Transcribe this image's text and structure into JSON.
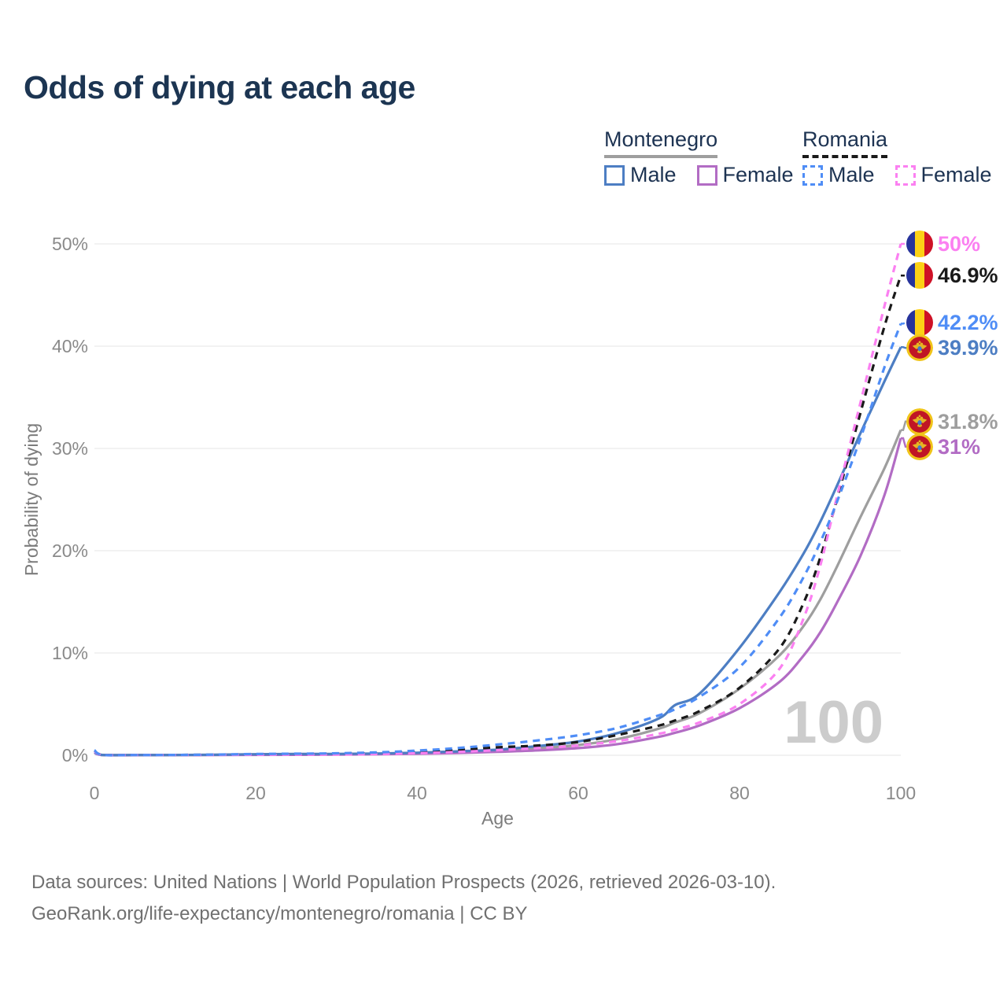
{
  "title": "Odds of dying at each age",
  "legend": {
    "groups": [
      {
        "name": "Montenegro",
        "underline_style": "solid",
        "underline_color": "#9e9e9e",
        "items": [
          {
            "label": "Male",
            "color": "#4d7ec3",
            "dashed": false
          },
          {
            "label": "Female",
            "color": "#b26cc4",
            "dashed": false
          }
        ]
      },
      {
        "name": "Romania",
        "underline_style": "dashed",
        "underline_color": "#1a1a1a",
        "items": [
          {
            "label": "Male",
            "color": "#4f8df6",
            "dashed": true
          },
          {
            "label": "Female",
            "color": "#fb80f1",
            "dashed": true
          }
        ]
      }
    ]
  },
  "chart_data": {
    "type": "line",
    "title": "Odds of dying at each age",
    "xlabel": "Age",
    "ylabel": "Probability of dying",
    "xlim": [
      0,
      100
    ],
    "ylim": [
      0,
      50
    ],
    "grid": "horizontal",
    "legend_position": "top-right",
    "x_ticks": [
      {
        "v": 0,
        "label": "0"
      },
      {
        "v": 20,
        "label": "20"
      },
      {
        "v": 40,
        "label": "40"
      },
      {
        "v": 60,
        "label": "60"
      },
      {
        "v": 80,
        "label": "80"
      },
      {
        "v": 100,
        "label": "100"
      }
    ],
    "y_ticks": [
      {
        "v": 0,
        "label": "0%"
      },
      {
        "v": 10,
        "label": "10%"
      },
      {
        "v": 20,
        "label": "20%"
      },
      {
        "v": 30,
        "label": "30%"
      },
      {
        "v": 40,
        "label": "40%"
      },
      {
        "v": 50,
        "label": "50%"
      }
    ],
    "x": [
      0,
      1,
      5,
      10,
      15,
      20,
      25,
      30,
      35,
      40,
      45,
      50,
      55,
      60,
      65,
      70,
      72,
      75,
      80,
      85,
      88,
      90,
      92,
      95,
      98,
      100
    ],
    "series": [
      {
        "id": "mne-total",
        "name": "Montenegro",
        "country": "Montenegro",
        "sex": "both",
        "color": "#9e9e9e",
        "dashed": false,
        "flag": "montenegro",
        "end_label": "31.8%",
        "end_value": 31.8,
        "values": [
          0.28,
          0.03,
          0.02,
          0.02,
          0.04,
          0.07,
          0.09,
          0.1,
          0.13,
          0.2,
          0.3,
          0.44,
          0.7,
          1.0,
          1.6,
          2.6,
          3.2,
          4.1,
          6.5,
          9.8,
          12.7,
          15.2,
          18.3,
          23.3,
          28.1,
          31.8
        ]
      },
      {
        "id": "mne-female",
        "name": "Montenegro Female",
        "country": "Montenegro",
        "sex": "female",
        "color": "#b26cc4",
        "dashed": false,
        "flag": "montenegro",
        "end_label": "31%",
        "end_value": 31,
        "values": [
          0.25,
          0.02,
          0.01,
          0.02,
          0.03,
          0.04,
          0.05,
          0.06,
          0.09,
          0.14,
          0.22,
          0.33,
          0.48,
          0.7,
          1.1,
          1.8,
          2.2,
          2.9,
          4.6,
          7.2,
          9.8,
          12.0,
          14.8,
          19.5,
          25.5,
          31.0
        ]
      },
      {
        "id": "mne-male",
        "name": "Montenegro Male",
        "country": "Montenegro",
        "sex": "male",
        "color": "#4d7ec3",
        "dashed": false,
        "flag": "montenegro",
        "end_label": "39.9%",
        "end_value": 39.9,
        "values": [
          0.3,
          0.03,
          0.02,
          0.02,
          0.05,
          0.1,
          0.12,
          0.13,
          0.17,
          0.25,
          0.38,
          0.55,
          0.9,
          1.35,
          2.2,
          3.6,
          4.9,
          6.0,
          10.5,
          16.0,
          19.8,
          22.8,
          26.2,
          31.5,
          36.6,
          39.9
        ]
      },
      {
        "id": "rou-total",
        "name": "Romania",
        "country": "Romania",
        "sex": "both",
        "color": "#1a1a1a",
        "dashed": true,
        "flag": "romania",
        "end_label": "46.9%",
        "end_value": 46.9,
        "values": [
          0.45,
          0.04,
          0.02,
          0.03,
          0.05,
          0.09,
          0.11,
          0.14,
          0.2,
          0.33,
          0.51,
          0.78,
          0.95,
          1.3,
          2.0,
          2.9,
          3.4,
          4.3,
          6.6,
          10.5,
          15.0,
          19.3,
          24.8,
          33.5,
          42.0,
          46.9
        ]
      },
      {
        "id": "rou-female",
        "name": "Romania Female",
        "country": "Romania",
        "sex": "female",
        "color": "#fb80f1",
        "dashed": true,
        "flag": "romania",
        "end_label": "50%",
        "end_value": 50,
        "values": [
          0.4,
          0.03,
          0.02,
          0.02,
          0.03,
          0.05,
          0.06,
          0.08,
          0.12,
          0.2,
          0.32,
          0.5,
          0.7,
          0.95,
          1.4,
          2.1,
          2.5,
          3.2,
          5.0,
          8.5,
          13.5,
          18.5,
          25.0,
          34.5,
          44.0,
          50.0
        ]
      },
      {
        "id": "rou-male",
        "name": "Romania Male",
        "country": "Romania",
        "sex": "male",
        "color": "#4f8df6",
        "dashed": true,
        "flag": "romania",
        "end_label": "42.2%",
        "end_value": 42.2,
        "values": [
          0.5,
          0.04,
          0.02,
          0.03,
          0.06,
          0.12,
          0.15,
          0.19,
          0.28,
          0.45,
          0.7,
          1.05,
          1.45,
          1.95,
          2.7,
          3.9,
          4.5,
          5.7,
          8.6,
          13.5,
          17.5,
          20.8,
          24.6,
          31.0,
          38.0,
          42.2
        ]
      }
    ],
    "annotations": {
      "watermark": "100"
    }
  },
  "colors": {
    "title_text": "#1c3552",
    "axis_text": "#8a8a8a",
    "gridline": "#e6e6e6",
    "watermark": "#cccccc",
    "romania_flag": {
      "blue": "#26339b",
      "yellow": "#fcd116",
      "red": "#ce1126"
    },
    "montenegro_flag": {
      "ring": "#f0c419",
      "field": "#c01525",
      "emblem": "#e5b523"
    }
  },
  "footer": {
    "line1": "Data sources: United Nations | World Population Prospects (2026, retrieved 2026-03-10).",
    "line2": "GeoRank.org/life-expectancy/montenegro/romania | CC BY"
  }
}
